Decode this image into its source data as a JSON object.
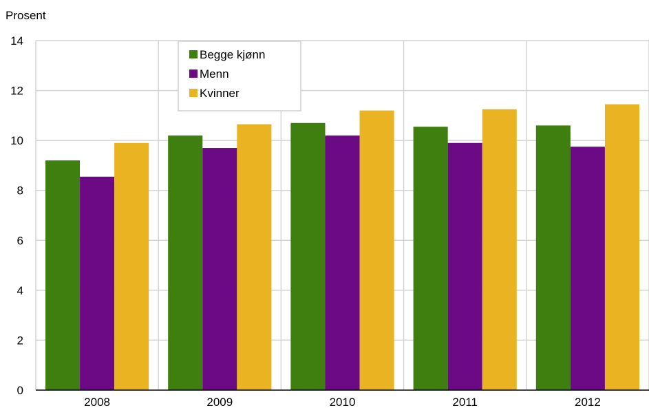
{
  "chart_data": {
    "type": "bar",
    "ylabel": "Prosent",
    "ylim": [
      0,
      14
    ],
    "yticks": [
      0,
      2,
      4,
      6,
      8,
      10,
      12,
      14
    ],
    "grid": true,
    "legend_position": "top-left",
    "categories": [
      "2008",
      "2009",
      "2010",
      "2011",
      "2012"
    ],
    "series": [
      {
        "name": "Begge kjønn",
        "color": "#3f7f0f",
        "values": [
          9.2,
          10.2,
          10.7,
          10.55,
          10.6
        ]
      },
      {
        "name": "Menn",
        "color": "#6b0a84",
        "values": [
          8.55,
          9.7,
          10.2,
          9.9,
          9.75
        ]
      },
      {
        "name": "Kvinner",
        "color": "#e9b322",
        "values": [
          9.9,
          10.65,
          11.2,
          11.25,
          11.45
        ]
      }
    ]
  }
}
